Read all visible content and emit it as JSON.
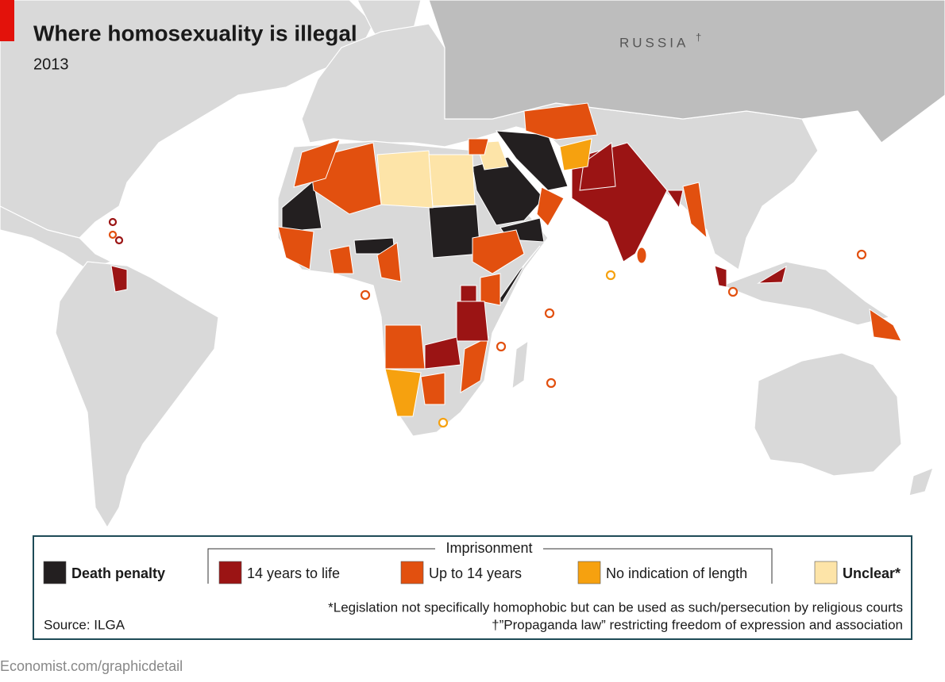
{
  "header": {
    "title": "Where homosexuality is illegal",
    "subtitle": "2013"
  },
  "map": {
    "label": "RUSSIA",
    "label_mark": "†"
  },
  "legend": {
    "group_title": "Imprisonment",
    "items": [
      {
        "label": "Death penalty",
        "color": "#231f20"
      },
      {
        "label": "14 years to life",
        "color": "#9b1414"
      },
      {
        "label": "Up to 14 years",
        "color": "#e2500f"
      },
      {
        "label": "No indication of length",
        "color": "#f6a10f"
      },
      {
        "label": "Unclear*",
        "color": "#fde4a8"
      }
    ]
  },
  "notes": [
    "*Legislation not specifically homophobic but can be used as such/persecution by religious courts",
    "†”Propaganda law” restricting freedom of expression and association"
  ],
  "source": "Source: ILGA",
  "footer": "Economist.com/graphicdetail"
}
